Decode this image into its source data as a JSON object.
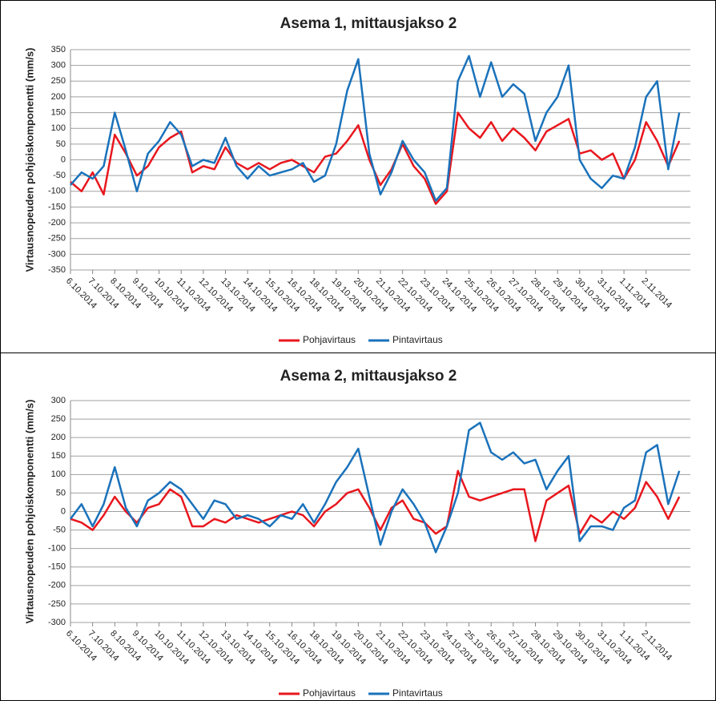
{
  "chart_data": [
    {
      "type": "line",
      "title": "Asema 1, mittausjakso 2",
      "y_label": "Virtausnopeuden pohjoiskomponentti (mm/s)",
      "grid": true,
      "legend": "bottom",
      "xlim": [
        0,
        28
      ],
      "ylim": [
        -350,
        350
      ],
      "yticks": [
        -350,
        -300,
        -250,
        -200,
        -150,
        -100,
        -50,
        0,
        50,
        100,
        150,
        200,
        250,
        300,
        350
      ],
      "xticks": [
        {
          "value": 0,
          "label": "6.10.2014"
        },
        {
          "value": 1,
          "label": "7.10.2014"
        },
        {
          "value": 2,
          "label": "8.10.2014"
        },
        {
          "value": 3,
          "label": "9.10.2014"
        },
        {
          "value": 4,
          "label": "10.10.2014"
        },
        {
          "value": 5,
          "label": "11.10.2014"
        },
        {
          "value": 6,
          "label": "12.10.2014"
        },
        {
          "value": 7,
          "label": "13.10.2014"
        },
        {
          "value": 8,
          "label": "14.10.2014"
        },
        {
          "value": 9,
          "label": "15.10.2014"
        },
        {
          "value": 10,
          "label": "16.10.2014"
        },
        {
          "value": 11,
          "label": "18.10.2014"
        },
        {
          "value": 12,
          "label": "19.10.2014"
        },
        {
          "value": 13,
          "label": "20.10.2014"
        },
        {
          "value": 14,
          "label": "21.10.2014"
        },
        {
          "value": 15,
          "label": "22.10.2014"
        },
        {
          "value": 16,
          "label": "23.10.2014"
        },
        {
          "value": 17,
          "label": "24.10.2014"
        },
        {
          "value": 18,
          "label": "25.10.2014"
        },
        {
          "value": 19,
          "label": "26.10.2014"
        },
        {
          "value": 20,
          "label": "27.10.2014"
        },
        {
          "value": 21,
          "label": "28.10.2014"
        },
        {
          "value": 22,
          "label": "29.10.2014"
        },
        {
          "value": 23,
          "label": "30.10.2014"
        },
        {
          "value": 24,
          "label": "31.10.2014"
        },
        {
          "value": 25,
          "label": "1.11.2014"
        },
        {
          "value": 26,
          "label": "2.11.2014"
        }
      ],
      "x": [
        0,
        0.5,
        1,
        1.5,
        2,
        2.5,
        3,
        3.5,
        4,
        4.5,
        5,
        5.5,
        6,
        6.5,
        7,
        7.5,
        8,
        8.5,
        9,
        9.5,
        10,
        10.5,
        11,
        11.5,
        12,
        12.5,
        13,
        13.5,
        14,
        14.5,
        15,
        15.5,
        16,
        16.5,
        17,
        17.5,
        18,
        18.5,
        19,
        19.5,
        20,
        20.5,
        21,
        21.5,
        22,
        22.5,
        23,
        23.5,
        24,
        24.5,
        25,
        25.5,
        26,
        26.5,
        27,
        27.5
      ],
      "series": [
        {
          "name": "Pohjavirtaus",
          "color": "#e8171e",
          "values": [
            -70,
            -100,
            -40,
            -110,
            80,
            20,
            -50,
            -20,
            40,
            70,
            90,
            -40,
            -20,
            -30,
            40,
            -10,
            -30,
            -10,
            -30,
            -10,
            0,
            -20,
            -40,
            10,
            20,
            60,
            110,
            0,
            -80,
            -30,
            50,
            -20,
            -60,
            -140,
            -100,
            150,
            100,
            70,
            120,
            60,
            100,
            70,
            30,
            90,
            110,
            130,
            20,
            30,
            0,
            20,
            -60,
            0,
            120,
            60,
            -20,
            60
          ]
        },
        {
          "name": "Pintavirtaus",
          "color": "#1a72bb",
          "values": [
            -80,
            -40,
            -60,
            -20,
            150,
            30,
            -100,
            20,
            60,
            120,
            80,
            -20,
            0,
            -10,
            70,
            -20,
            -60,
            -20,
            -50,
            -40,
            -30,
            -10,
            -70,
            -50,
            50,
            220,
            320,
            20,
            -110,
            -40,
            60,
            0,
            -40,
            -130,
            -90,
            250,
            330,
            200,
            310,
            200,
            240,
            210,
            60,
            150,
            200,
            300,
            0,
            -60,
            -90,
            -50,
            -60,
            40,
            200,
            250,
            -30,
            150
          ]
        }
      ]
    },
    {
      "type": "line",
      "title": "Asema 2, mittausjakso 2",
      "y_label": "Virtausnopeuden pohjoiskomponentti (mm/s)",
      "grid": true,
      "legend": "bottom",
      "xlim": [
        0,
        28
      ],
      "ylim": [
        -300,
        300
      ],
      "yticks": [
        -300,
        -250,
        -200,
        -150,
        -100,
        -50,
        0,
        50,
        100,
        150,
        200,
        250,
        300
      ],
      "xticks": [
        {
          "value": 0,
          "label": "6.10.2014"
        },
        {
          "value": 1,
          "label": "7.10.2014"
        },
        {
          "value": 2,
          "label": "8.10.2014"
        },
        {
          "value": 3,
          "label": "9.10.2014"
        },
        {
          "value": 4,
          "label": "10.10.2014"
        },
        {
          "value": 5,
          "label": "11.10.2014"
        },
        {
          "value": 6,
          "label": "12.10.2014"
        },
        {
          "value": 7,
          "label": "13.10.2014"
        },
        {
          "value": 8,
          "label": "14.10.2014"
        },
        {
          "value": 9,
          "label": "15.10.2014"
        },
        {
          "value": 10,
          "label": "16.10.2014"
        },
        {
          "value": 11,
          "label": "18.10.2014"
        },
        {
          "value": 12,
          "label": "19.10.2014"
        },
        {
          "value": 13,
          "label": "20.10.2014"
        },
        {
          "value": 14,
          "label": "21.10.2014"
        },
        {
          "value": 15,
          "label": "22.10.2014"
        },
        {
          "value": 16,
          "label": "23.10.2014"
        },
        {
          "value": 17,
          "label": "24.10.2014"
        },
        {
          "value": 18,
          "label": "25.10.2014"
        },
        {
          "value": 19,
          "label": "26.10.2014"
        },
        {
          "value": 20,
          "label": "27.10.2014"
        },
        {
          "value": 21,
          "label": "28.10.2014"
        },
        {
          "value": 22,
          "label": "29.10.2014"
        },
        {
          "value": 23,
          "label": "30.10.2014"
        },
        {
          "value": 24,
          "label": "31.10.2014"
        },
        {
          "value": 25,
          "label": "1.11.2014"
        },
        {
          "value": 26,
          "label": "2.11.2014"
        }
      ],
      "x": [
        0,
        0.5,
        1,
        1.5,
        2,
        2.5,
        3,
        3.5,
        4,
        4.5,
        5,
        5.5,
        6,
        6.5,
        7,
        7.5,
        8,
        8.5,
        9,
        9.5,
        10,
        10.5,
        11,
        11.5,
        12,
        12.5,
        13,
        13.5,
        14,
        14.5,
        15,
        15.5,
        16,
        16.5,
        17,
        17.5,
        18,
        18.5,
        19,
        19.5,
        20,
        20.5,
        21,
        21.5,
        22,
        22.5,
        23,
        23.5,
        24,
        24.5,
        25,
        25.5,
        26,
        26.5,
        27,
        27.5
      ],
      "series": [
        {
          "name": "Pohjavirtaus",
          "color": "#e8171e",
          "values": [
            -20,
            -30,
            -50,
            -10,
            40,
            0,
            -30,
            10,
            20,
            60,
            40,
            -40,
            -40,
            -20,
            -30,
            -10,
            -20,
            -30,
            -20,
            -10,
            0,
            -10,
            -40,
            0,
            20,
            50,
            60,
            10,
            -50,
            10,
            30,
            -20,
            -30,
            -60,
            -40,
            110,
            40,
            30,
            40,
            50,
            60,
            60,
            -80,
            30,
            50,
            70,
            -60,
            -10,
            -30,
            0,
            -20,
            10,
            80,
            40,
            -20,
            40
          ]
        },
        {
          "name": "Pintavirtaus",
          "color": "#1a72bb",
          "values": [
            -20,
            20,
            -40,
            20,
            120,
            10,
            -40,
            30,
            50,
            80,
            60,
            20,
            -20,
            30,
            20,
            -20,
            -10,
            -20,
            -40,
            -10,
            -20,
            20,
            -30,
            20,
            80,
            120,
            170,
            40,
            -90,
            0,
            60,
            20,
            -30,
            -110,
            -40,
            50,
            220,
            240,
            160,
            140,
            160,
            130,
            140,
            60,
            110,
            150,
            -80,
            -40,
            -40,
            -50,
            10,
            30,
            160,
            180,
            20,
            110
          ]
        }
      ]
    }
  ]
}
